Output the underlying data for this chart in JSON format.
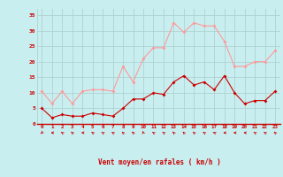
{
  "x": [
    0,
    1,
    2,
    3,
    4,
    5,
    6,
    7,
    8,
    9,
    10,
    11,
    12,
    13,
    14,
    15,
    16,
    17,
    18,
    19,
    20,
    21,
    22,
    23
  ],
  "vent_moyen": [
    5,
    2,
    3,
    2.5,
    2.5,
    3.5,
    3,
    2.5,
    5,
    8,
    8,
    10,
    9.5,
    13.5,
    15.5,
    12.5,
    13.5,
    11,
    15.5,
    10,
    6.5,
    7.5,
    7.5,
    10.5
  ],
  "rafales": [
    10.5,
    6.5,
    10.5,
    6.5,
    10.5,
    11,
    11,
    10.5,
    18.5,
    13.5,
    21,
    24.5,
    24.5,
    32.5,
    29.5,
    32.5,
    31.5,
    31.5,
    26.5,
    18.5,
    18.5,
    20,
    20,
    23.5
  ],
  "color_moyen": "#cc0000",
  "color_rafales": "#ff9999",
  "bg_color": "#c8eef0",
  "grid_color": "#aacccc",
  "xlabel": "Vent moyen/en rafales ( km/h )",
  "xlabel_color": "#cc0000",
  "tick_color": "#cc0000",
  "ylim": [
    0,
    37
  ],
  "yticks": [
    0,
    5,
    10,
    15,
    20,
    25,
    30,
    35
  ],
  "xticks": [
    0,
    1,
    2,
    3,
    4,
    5,
    6,
    7,
    8,
    9,
    10,
    11,
    12,
    13,
    14,
    15,
    16,
    17,
    18,
    19,
    20,
    21,
    22,
    23
  ],
  "arrow_angles": [
    210,
    180,
    160,
    150,
    180,
    160,
    160,
    160,
    150,
    150,
    120,
    160,
    160,
    150,
    150,
    150,
    160,
    170,
    180,
    180,
    180,
    160,
    160,
    150
  ]
}
